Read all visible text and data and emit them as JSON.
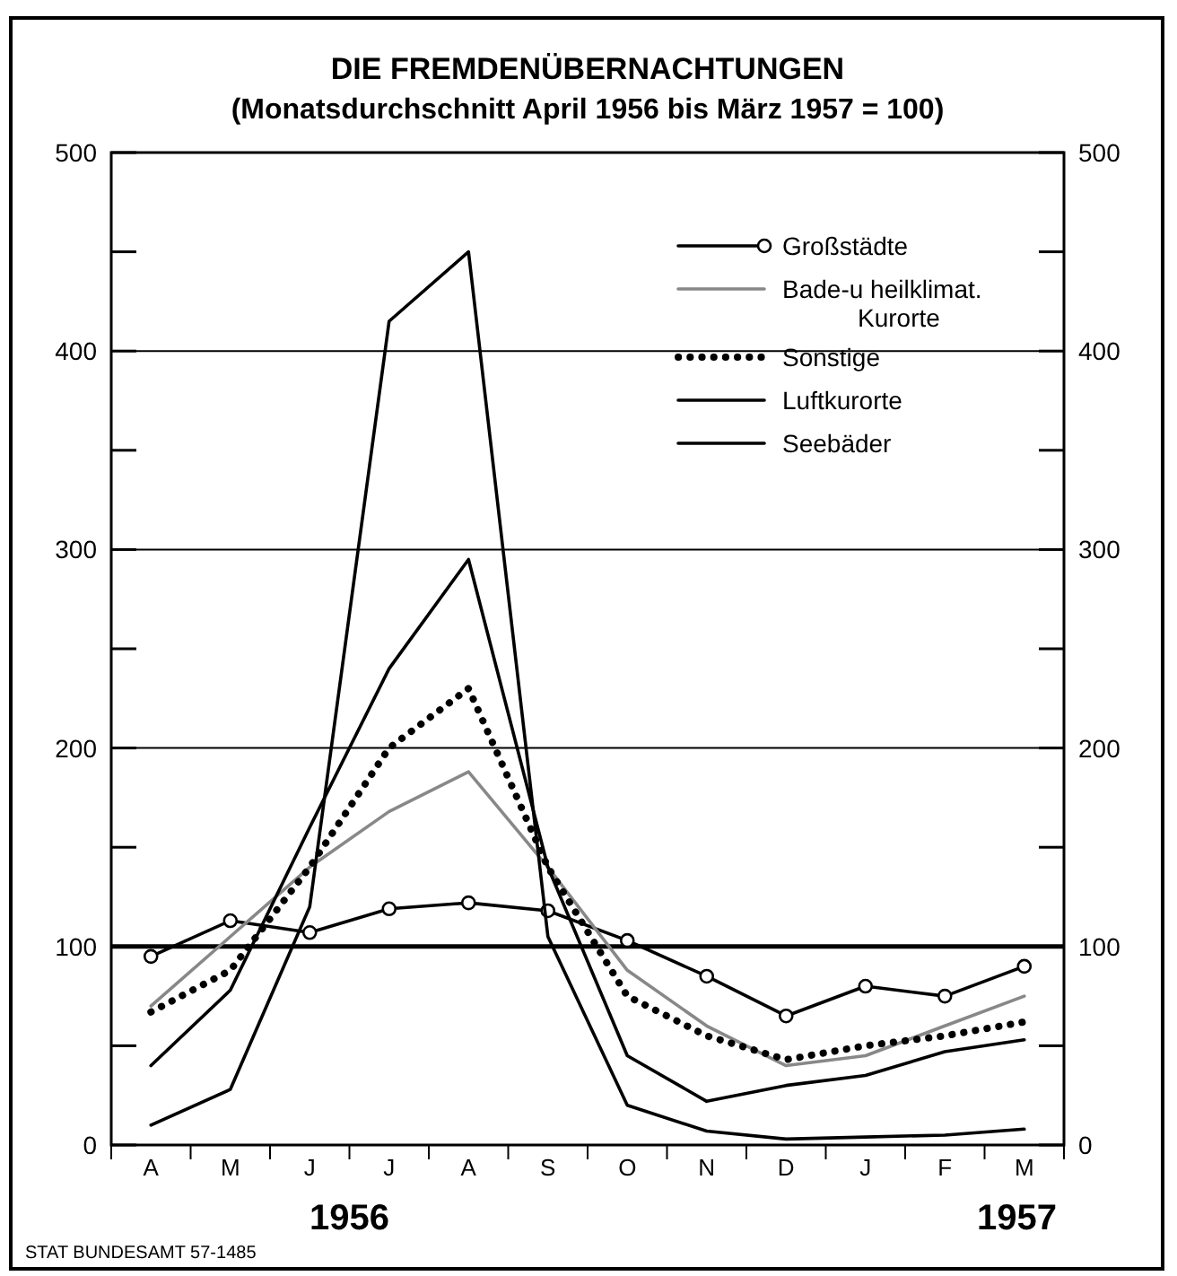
{
  "chart_data": {
    "type": "line",
    "title": "DIE FREMDENÜBERNACHTUNGEN",
    "subtitle": "(Monatsdurchschnitt April 1956 bis März 1957 = 100)",
    "categories": [
      "A",
      "M",
      "J",
      "J",
      "A",
      "S",
      "O",
      "N",
      "D",
      "J",
      "F",
      "M"
    ],
    "ylim": [
      0,
      500
    ],
    "yticks": [
      0,
      {
        "value": 50,
        "label": null
      },
      100,
      {
        "value": 150,
        "label": null
      },
      200,
      {
        "value": 250,
        "label": null
      },
      300,
      {
        "value": 350,
        "label": null
      },
      400,
      {
        "value": 450,
        "label": null
      },
      500
    ],
    "y2lim": [
      0,
      500
    ],
    "y2ticks": [
      0,
      {
        "value": 50,
        "label": null
      },
      100,
      {
        "value": 150,
        "label": null
      },
      200,
      {
        "value": 250,
        "label": null
      },
      300,
      {
        "value": 350,
        "label": null
      },
      400,
      {
        "value": 450,
        "label": null
      },
      500
    ],
    "grid": "y",
    "legend": "top right",
    "ref_lines": [
      {
        "axis": "y",
        "value": 100,
        "label": null
      }
    ],
    "annotations": [
      "1956",
      "1957",
      "STAT BUNDESAMT 57-1485"
    ],
    "series": [
      {
        "name": "Großstädte",
        "color": "#000000",
        "line_style": "solid",
        "marker": "circle",
        "values": [
          95,
          113,
          107,
          119,
          122,
          118,
          103,
          85,
          65,
          80,
          75,
          90
        ]
      },
      {
        "name": "Bade-u heilklimat. Kurorte",
        "color": "#888888",
        "line_style": "solid",
        "marker": "none",
        "values": [
          70,
          105,
          140,
          168,
          188,
          140,
          88,
          60,
          40,
          45,
          60,
          75
        ]
      },
      {
        "name": "Sonstige",
        "color": "#000000",
        "line_style": "dotted",
        "marker": "none",
        "values": [
          67,
          88,
          140,
          200,
          230,
          140,
          75,
          55,
          43,
          50,
          55,
          62
        ]
      },
      {
        "name": "Luftkurorte",
        "color": "#000000",
        "line_style": "solid",
        "marker": "none",
        "values": [
          40,
          78,
          160,
          240,
          295,
          140,
          45,
          22,
          30,
          35,
          47,
          53
        ]
      },
      {
        "name": "Seebäder",
        "color": "#000000",
        "line_style": "solid",
        "marker": "none",
        "values": [
          10,
          28,
          120,
          415,
          450,
          105,
          20,
          7,
          3,
          4,
          5,
          8
        ]
      }
    ]
  }
}
